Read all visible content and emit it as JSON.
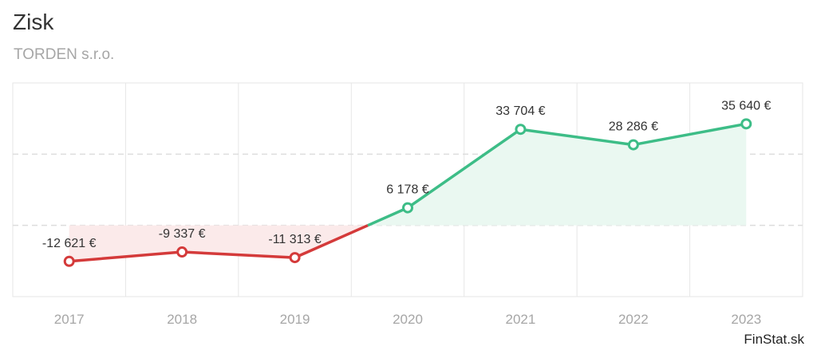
{
  "title": "Zisk",
  "subtitle": "TORDEN s.r.o.",
  "brand": "FinStat.sk",
  "colors": {
    "negative": "#d43a3a",
    "positive": "#3dbd87",
    "negative_fill": "#fbeaea",
    "positive_fill": "#eaf8f1"
  },
  "chart_data": {
    "type": "line",
    "categories": [
      "2017",
      "2018",
      "2019",
      "2020",
      "2021",
      "2022",
      "2023"
    ],
    "values": [
      -12621,
      -9337,
      -11313,
      6178,
      33704,
      28286,
      35640
    ],
    "data_labels": [
      "-12 621 €",
      "-9 337 €",
      "-11 313 €",
      "6 178 €",
      "33 704 €",
      "28 286 €",
      "35 640 €"
    ],
    "ylim": [
      -25000,
      50000
    ],
    "grid": true,
    "legend": "none"
  }
}
